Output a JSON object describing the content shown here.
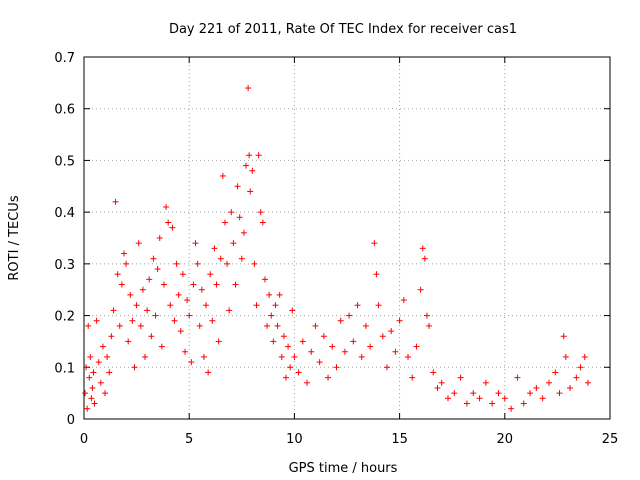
{
  "chart_data": {
    "type": "scatter",
    "title": "Day 221 of 2011, Rate Of TEC Index for receiver cas1",
    "xlabel": "GPS time / hours",
    "ylabel": "ROTI / TECUs",
    "xlim": [
      0,
      25
    ],
    "ylim": [
      0,
      0.7
    ],
    "xticks": [
      "0",
      "5",
      "10",
      "15",
      "20",
      "25"
    ],
    "yticks": [
      "0",
      "0.1",
      "0.2",
      "0.3",
      "0.4",
      "0.5",
      "0.6",
      "0.7"
    ],
    "grid": true,
    "marker": "+",
    "color": "#ff0000",
    "series": [
      {
        "points": [
          [
            0.05,
            0.05
          ],
          [
            0.1,
            0.1
          ],
          [
            0.15,
            0.02
          ],
          [
            0.2,
            0.18
          ],
          [
            0.25,
            0.08
          ],
          [
            0.3,
            0.12
          ],
          [
            0.35,
            0.04
          ],
          [
            0.4,
            0.06
          ],
          [
            0.45,
            0.09
          ],
          [
            0.5,
            0.03
          ],
          [
            0.6,
            0.19
          ],
          [
            0.7,
            0.11
          ],
          [
            0.8,
            0.07
          ],
          [
            0.9,
            0.14
          ],
          [
            1.0,
            0.05
          ],
          [
            1.1,
            0.12
          ],
          [
            1.2,
            0.09
          ],
          [
            1.3,
            0.16
          ],
          [
            1.4,
            0.21
          ],
          [
            1.5,
            0.42
          ],
          [
            1.6,
            0.28
          ],
          [
            1.7,
            0.18
          ],
          [
            1.8,
            0.26
          ],
          [
            1.9,
            0.32
          ],
          [
            2.0,
            0.3
          ],
          [
            2.1,
            0.15
          ],
          [
            2.2,
            0.24
          ],
          [
            2.3,
            0.19
          ],
          [
            2.4,
            0.1
          ],
          [
            2.5,
            0.22
          ],
          [
            2.6,
            0.34
          ],
          [
            2.7,
            0.18
          ],
          [
            2.8,
            0.25
          ],
          [
            2.9,
            0.12
          ],
          [
            3.0,
            0.21
          ],
          [
            3.1,
            0.27
          ],
          [
            3.2,
            0.16
          ],
          [
            3.3,
            0.31
          ],
          [
            3.4,
            0.2
          ],
          [
            3.5,
            0.29
          ],
          [
            3.6,
            0.35
          ],
          [
            3.7,
            0.14
          ],
          [
            3.8,
            0.26
          ],
          [
            3.9,
            0.41
          ],
          [
            4.0,
            0.38
          ],
          [
            4.1,
            0.22
          ],
          [
            4.2,
            0.37
          ],
          [
            4.3,
            0.19
          ],
          [
            4.4,
            0.3
          ],
          [
            4.5,
            0.24
          ],
          [
            4.6,
            0.17
          ],
          [
            4.7,
            0.28
          ],
          [
            4.8,
            0.13
          ],
          [
            4.9,
            0.23
          ],
          [
            5.0,
            0.2
          ],
          [
            5.1,
            0.11
          ],
          [
            5.2,
            0.26
          ],
          [
            5.3,
            0.34
          ],
          [
            5.4,
            0.3
          ],
          [
            5.5,
            0.18
          ],
          [
            5.6,
            0.25
          ],
          [
            5.7,
            0.12
          ],
          [
            5.8,
            0.22
          ],
          [
            5.9,
            0.09
          ],
          [
            6.0,
            0.28
          ],
          [
            6.1,
            0.19
          ],
          [
            6.2,
            0.33
          ],
          [
            6.3,
            0.26
          ],
          [
            6.4,
            0.15
          ],
          [
            6.5,
            0.31
          ],
          [
            6.6,
            0.47
          ],
          [
            6.7,
            0.38
          ],
          [
            6.8,
            0.3
          ],
          [
            6.9,
            0.21
          ],
          [
            7.0,
            0.4
          ],
          [
            7.1,
            0.34
          ],
          [
            7.2,
            0.26
          ],
          [
            7.3,
            0.45
          ],
          [
            7.4,
            0.39
          ],
          [
            7.5,
            0.31
          ],
          [
            7.6,
            0.36
          ],
          [
            7.7,
            0.49
          ],
          [
            7.8,
            0.64
          ],
          [
            7.85,
            0.51
          ],
          [
            7.9,
            0.44
          ],
          [
            8.0,
            0.48
          ],
          [
            8.1,
            0.3
          ],
          [
            8.2,
            0.22
          ],
          [
            8.3,
            0.51
          ],
          [
            8.4,
            0.4
          ],
          [
            8.5,
            0.38
          ],
          [
            8.6,
            0.27
          ],
          [
            8.7,
            0.18
          ],
          [
            8.8,
            0.24
          ],
          [
            8.9,
            0.2
          ],
          [
            9.0,
            0.15
          ],
          [
            9.1,
            0.22
          ],
          [
            9.2,
            0.18
          ],
          [
            9.3,
            0.24
          ],
          [
            9.4,
            0.12
          ],
          [
            9.5,
            0.16
          ],
          [
            9.6,
            0.08
          ],
          [
            9.7,
            0.14
          ],
          [
            9.8,
            0.1
          ],
          [
            9.9,
            0.21
          ],
          [
            10.0,
            0.12
          ],
          [
            10.2,
            0.09
          ],
          [
            10.4,
            0.15
          ],
          [
            10.6,
            0.07
          ],
          [
            10.8,
            0.13
          ],
          [
            11.0,
            0.18
          ],
          [
            11.2,
            0.11
          ],
          [
            11.4,
            0.16
          ],
          [
            11.6,
            0.08
          ],
          [
            11.8,
            0.14
          ],
          [
            12.0,
            0.1
          ],
          [
            12.2,
            0.19
          ],
          [
            12.4,
            0.13
          ],
          [
            12.6,
            0.2
          ],
          [
            12.8,
            0.15
          ],
          [
            13.0,
            0.22
          ],
          [
            13.2,
            0.12
          ],
          [
            13.4,
            0.18
          ],
          [
            13.6,
            0.14
          ],
          [
            13.8,
            0.34
          ],
          [
            13.9,
            0.28
          ],
          [
            14.0,
            0.22
          ],
          [
            14.2,
            0.16
          ],
          [
            14.4,
            0.1
          ],
          [
            14.6,
            0.17
          ],
          [
            14.8,
            0.13
          ],
          [
            15.0,
            0.19
          ],
          [
            15.2,
            0.23
          ],
          [
            15.4,
            0.12
          ],
          [
            15.6,
            0.08
          ],
          [
            15.8,
            0.14
          ],
          [
            16.0,
            0.25
          ],
          [
            16.1,
            0.33
          ],
          [
            16.2,
            0.31
          ],
          [
            16.3,
            0.2
          ],
          [
            16.4,
            0.18
          ],
          [
            16.6,
            0.09
          ],
          [
            16.8,
            0.06
          ],
          [
            17.0,
            0.07
          ],
          [
            17.3,
            0.04
          ],
          [
            17.6,
            0.05
          ],
          [
            17.9,
            0.08
          ],
          [
            18.2,
            0.03
          ],
          [
            18.5,
            0.05
          ],
          [
            18.8,
            0.04
          ],
          [
            19.1,
            0.07
          ],
          [
            19.4,
            0.03
          ],
          [
            19.7,
            0.05
          ],
          [
            20.0,
            0.04
          ],
          [
            20.3,
            0.02
          ],
          [
            20.6,
            0.08
          ],
          [
            20.9,
            0.03
          ],
          [
            21.2,
            0.05
          ],
          [
            21.5,
            0.06
          ],
          [
            21.8,
            0.04
          ],
          [
            22.1,
            0.07
          ],
          [
            22.4,
            0.09
          ],
          [
            22.6,
            0.05
          ],
          [
            22.8,
            0.16
          ],
          [
            22.9,
            0.12
          ],
          [
            23.1,
            0.06
          ],
          [
            23.4,
            0.08
          ],
          [
            23.6,
            0.1
          ],
          [
            23.8,
            0.12
          ],
          [
            23.95,
            0.07
          ]
        ]
      }
    ]
  }
}
